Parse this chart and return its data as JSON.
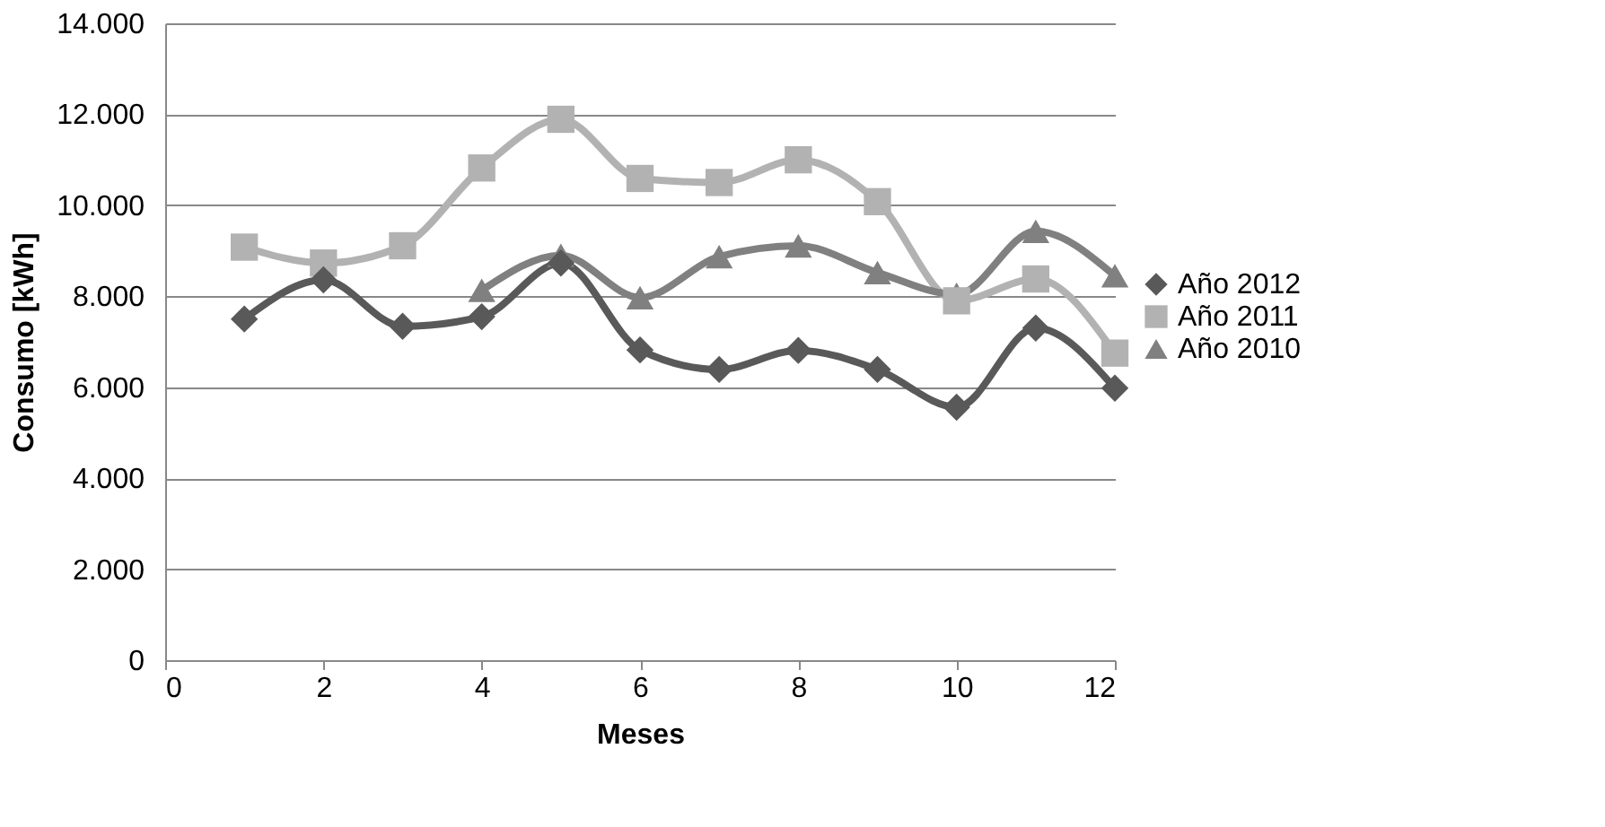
{
  "chart_data": {
    "type": "line",
    "xlabel": "Meses",
    "ylabel": "Consumo [kWh]",
    "x": [
      1,
      2,
      3,
      4,
      5,
      6,
      7,
      8,
      9,
      10,
      11,
      12
    ],
    "series": [
      {
        "name": "Año 2012",
        "color": "#595959",
        "marker": "diamond",
        "values": [
          7500,
          8360,
          7340,
          7550,
          8730,
          6820,
          6390,
          6810,
          6390,
          5560,
          7300,
          5980
        ]
      },
      {
        "name": "Año 2011",
        "color": "#b2b2b2",
        "marker": "square",
        "values": [
          9080,
          8730,
          9110,
          10820,
          11890,
          10590,
          10500,
          11000,
          10080,
          7900,
          8380,
          6750
        ]
      },
      {
        "name": "Año 2010",
        "color": "#808080",
        "marker": "triangle",
        "values": [
          null,
          null,
          null,
          8130,
          8900,
          7970,
          8870,
          9110,
          8520,
          8040,
          9430,
          8450
        ]
      }
    ],
    "xlim": [
      0,
      12
    ],
    "xticks": [
      0,
      2,
      4,
      6,
      8,
      10,
      12
    ],
    "ylim": [
      0,
      14000
    ],
    "yticks": [
      0,
      {
        "value": 2000,
        "label": "2.000"
      },
      {
        "value": 4000,
        "label": "4.000"
      },
      {
        "value": 6000,
        "label": "6.000"
      },
      {
        "value": 8000,
        "label": "8.000"
      },
      {
        "value": 10000,
        "label": "10.000"
      },
      {
        "value": 12000,
        "label": "12.000"
      },
      {
        "value": 14000,
        "label": "14.000"
      }
    ],
    "grid": "y",
    "legend": "right",
    "line_style": "solid"
  }
}
